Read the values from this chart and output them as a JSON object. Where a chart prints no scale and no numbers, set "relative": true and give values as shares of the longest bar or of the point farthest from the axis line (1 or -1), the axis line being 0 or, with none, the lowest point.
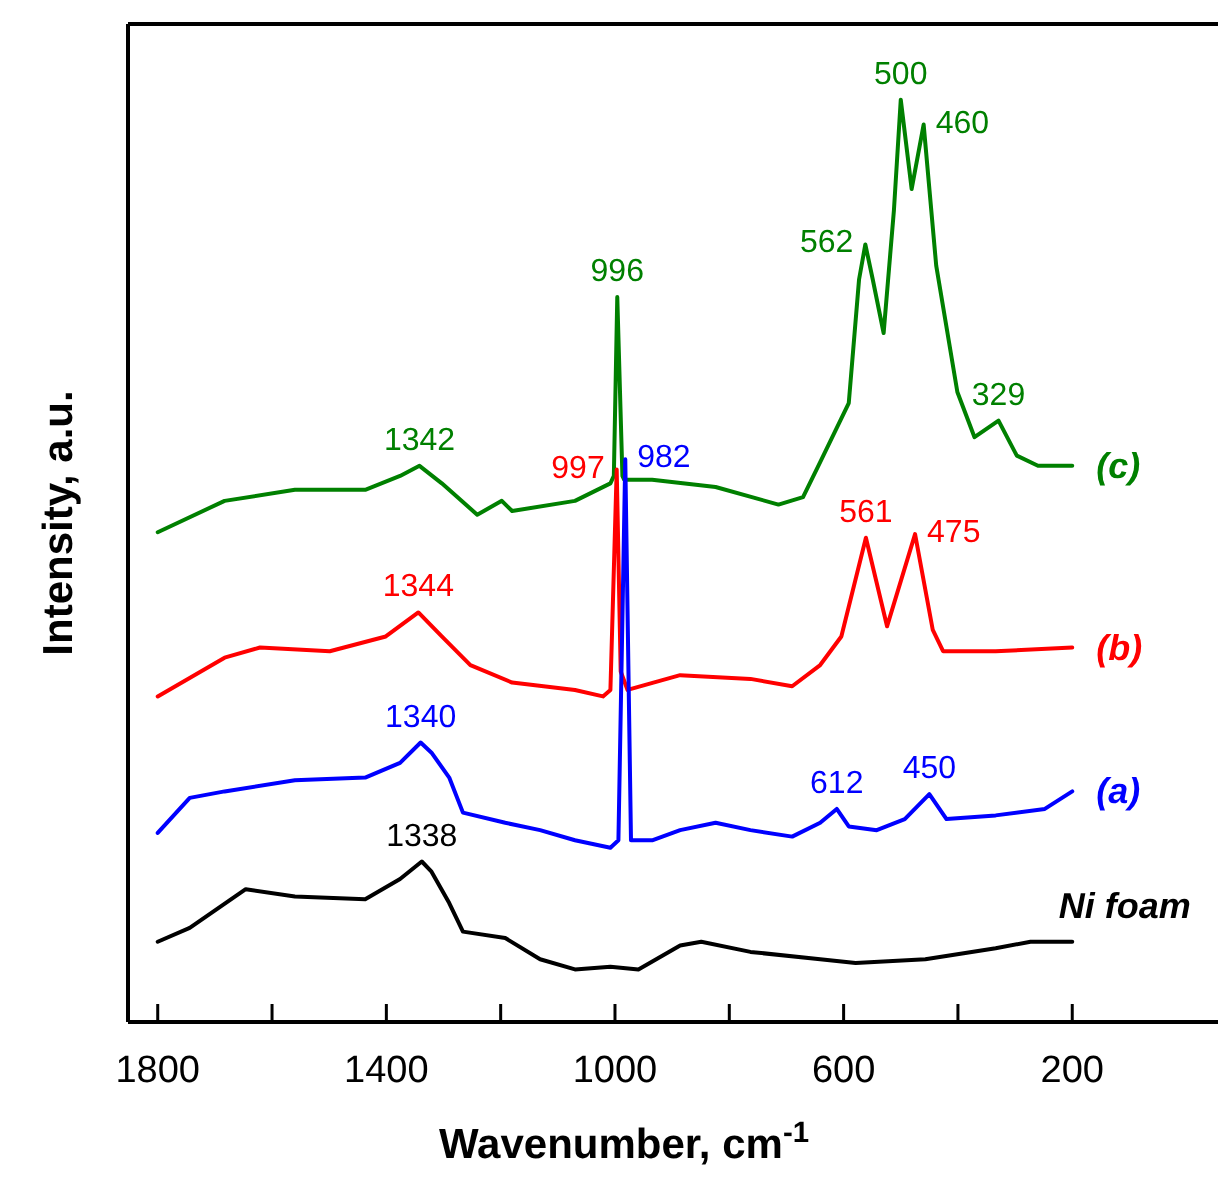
{
  "chart_data": {
    "type": "line",
    "relative": true,
    "xlabel": "Wavenumber, cm$^{-1}$",
    "ylabel": "Intensity, a.u.",
    "xlim": [
      1852,
      -55
    ],
    "xticks": [
      1800,
      {
        "value": 1600,
        "label": null
      },
      1400,
      {
        "value": 1200,
        "label": null
      },
      1000,
      {
        "value": 800,
        "label": null
      },
      600,
      {
        "value": 400,
        "label": null
      },
      200
    ],
    "grid": false,
    "marker": "none",
    "line_style": "solid",
    "series": [
      {
        "name": "(c)",
        "color": "#008000",
        "x": [
          1800,
          1683,
          1560,
          1437,
          1376,
          1342,
          1303,
          1241,
          1198,
          1180,
          1070,
          1008,
          1002,
          996,
          987,
          984,
          935,
          824,
          714,
          671,
          641,
          591,
          573,
          562,
          549,
          530,
          512,
          500,
          481,
          460,
          438,
          401,
          371,
          329,
          297,
          260,
          200
        ],
        "values": [
          0.531,
          0.565,
          0.577,
          0.577,
          0.592,
          0.603,
          0.584,
          0.55,
          0.565,
          0.554,
          0.565,
          0.584,
          0.592,
          0.786,
          0.592,
          0.588,
          0.588,
          0.58,
          0.561,
          0.569,
          0.607,
          0.671,
          0.805,
          0.843,
          0.805,
          0.747,
          0.88,
          1.0,
          0.903,
          0.973,
          0.82,
          0.683,
          0.634,
          0.652,
          0.614,
          0.603,
          0.603
        ]
      },
      {
        "name": "(b)",
        "color": "#ff0000",
        "x": [
          1800,
          1683,
          1621,
          1499,
          1401,
          1344,
          1303,
          1253,
          1180,
          1070,
          1021,
          1008,
          997,
          990,
          978,
          886,
          763,
          690,
          641,
          604,
          561,
          524,
          475,
          444,
          426,
          334,
          200
        ],
        "values": [
          0.353,
          0.395,
          0.406,
          0.402,
          0.418,
          0.444,
          0.418,
          0.387,
          0.368,
          0.36,
          0.353,
          0.36,
          0.599,
          0.38,
          0.36,
          0.376,
          0.372,
          0.364,
          0.387,
          0.418,
          0.525,
          0.429,
          0.529,
          0.425,
          0.402,
          0.402,
          0.406
        ]
      },
      {
        "name": "(a)",
        "color": "#0000ff",
        "x": [
          1800,
          1744,
          1683,
          1560,
          1437,
          1376,
          1340,
          1321,
          1290,
          1266,
          1192,
          1131,
          1070,
          1008,
          994,
          982,
          972,
          935,
          886,
          824,
          763,
          690,
          641,
          612,
          591,
          542,
          493,
          450,
          420,
          334,
          248,
          200
        ],
        "values": [
          0.205,
          0.243,
          0.25,
          0.262,
          0.265,
          0.281,
          0.303,
          0.292,
          0.265,
          0.227,
          0.216,
          0.208,
          0.197,
          0.189,
          0.197,
          0.61,
          0.197,
          0.197,
          0.208,
          0.216,
          0.208,
          0.201,
          0.216,
          0.231,
          0.212,
          0.208,
          0.22,
          0.247,
          0.22,
          0.224,
          0.231,
          0.25
        ]
      },
      {
        "name": "Ni foam",
        "color": "#000000",
        "x": [
          1800,
          1744,
          1646,
          1560,
          1437,
          1376,
          1338,
          1321,
          1290,
          1266,
          1192,
          1131,
          1070,
          1008,
          959,
          886,
          849,
          763,
          641,
          579,
          457,
          334,
          273,
          200
        ],
        "values": [
          0.087,
          0.102,
          0.144,
          0.136,
          0.133,
          0.155,
          0.174,
          0.163,
          0.129,
          0.098,
          0.091,
          0.068,
          0.057,
          0.06,
          0.057,
          0.083,
          0.087,
          0.076,
          0.068,
          0.064,
          0.068,
          0.08,
          0.087,
          0.087
        ]
      }
    ],
    "annotations": [
      {
        "text": "996",
        "x": 996,
        "y": 0.786
      },
      {
        "text": "562",
        "x": 562,
        "y": 0.843
      },
      {
        "text": "500",
        "x": 500,
        "y": 1.0
      },
      {
        "text": "460",
        "x": 460,
        "y": 0.973
      },
      {
        "text": "329",
        "x": 329,
        "y": 0.652
      },
      {
        "text": "1342",
        "x": 1342,
        "y": 0.603
      },
      {
        "text": "1344",
        "x": 1344,
        "y": 0.444
      },
      {
        "text": "997",
        "x": 997,
        "y": 0.599
      },
      {
        "text": "561",
        "x": 561,
        "y": 0.525
      },
      {
        "text": "475",
        "x": 475,
        "y": 0.529
      },
      {
        "text": "1340",
        "x": 1340,
        "y": 0.303
      },
      {
        "text": "982",
        "x": 982,
        "y": 0.61
      },
      {
        "text": "612",
        "x": 612,
        "y": 0.231
      },
      {
        "text": "450",
        "x": 450,
        "y": 0.247
      },
      {
        "text": "1338",
        "x": 1338,
        "y": 0.174
      }
    ]
  }
}
